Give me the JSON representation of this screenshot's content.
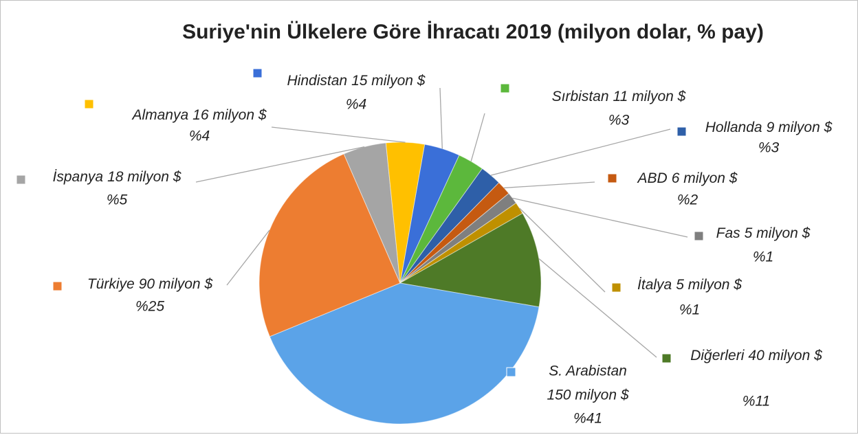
{
  "chart_data": {
    "type": "pie",
    "title": "Suriye'nin Ülkelere Göre İhracatı 2019 (milyon dolar, % pay)",
    "categories": [
      "Hindistan",
      "Sırbistan",
      "Hollanda",
      "ABD",
      "Fas",
      "İtalya",
      "Diğerleri",
      "S. Arabistan",
      "Türkiye",
      "İspanya",
      "Almanya"
    ],
    "values": [
      15,
      11,
      9,
      6,
      5,
      5,
      40,
      150,
      90,
      18,
      16
    ],
    "value_labels": [
      "15 milyon $",
      "11 milyon $",
      "9 milyon $",
      "6 milyon $",
      "5 milyon $",
      "5 milyon $",
      "40 milyon $",
      "150 milyon $",
      "90 milyon $",
      "18 milyon $",
      "16 milyon $"
    ],
    "shares": [
      4,
      3,
      3,
      2,
      1,
      1,
      11,
      41,
      25,
      5,
      4
    ],
    "share_labels": [
      "%4",
      "%3",
      "%3",
      "%2",
      "%1",
      "%1",
      "%11",
      "%41",
      "%25",
      "%5",
      "%4"
    ],
    "colors": [
      "#3a6fd8",
      "#5cb83c",
      "#2e5fa8",
      "#c55a11",
      "#7f7f7f",
      "#bf9000",
      "#4e7a27",
      "#5ba3e8",
      "#ed7d31",
      "#a5a5a5",
      "#ffc000"
    ]
  }
}
